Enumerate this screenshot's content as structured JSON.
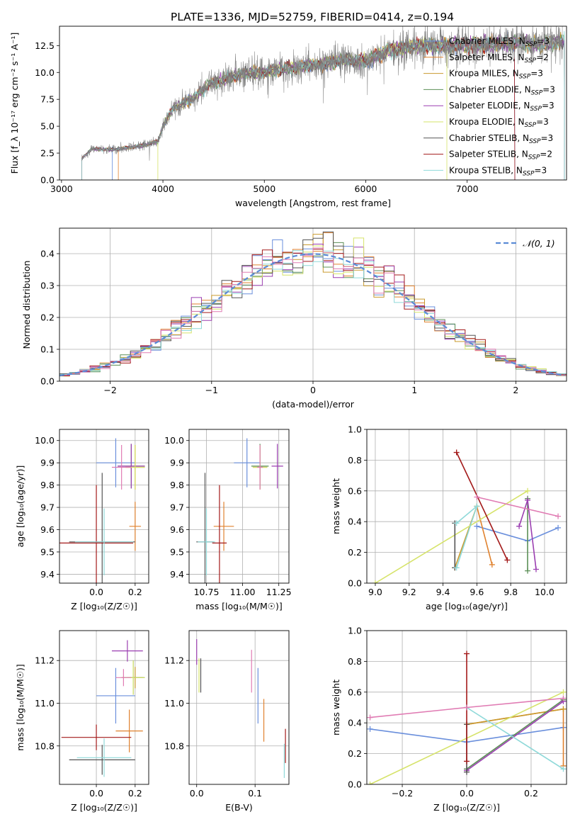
{
  "figure": {
    "title": "PLATE=1336, MJD=52759, FIBERID=0414, z=0.194"
  },
  "colors": {
    "Chabrier MILES": "#6a8fdc",
    "Salpeter MILES": "#e0822f",
    "Kroupa MILES": "#c99a2e",
    "Chabrier ELODIE": "#5c8f57",
    "Salpeter ELODIE": "#9b3fb1",
    "Kroupa ELODIE": "#d6e36a",
    "Chabrier STELIB": "#555555",
    "Salpeter STELIB": "#a31a1a",
    "Kroupa STELIB": "#8fd9d9",
    "pink": "#e07bb3",
    "data": "#808080",
    "normal": "#5b8bd6"
  },
  "chart_data": [
    {
      "id": "spectrum",
      "type": "line",
      "xlabel": "wavelength [Angstrom, rest frame]",
      "ylabel": "Flux [f_λ 10⁻¹⁷ erg cm⁻² s⁻¹ A⁻¹]",
      "xlim": [
        2980,
        7980
      ],
      "ylim": [
        0,
        14.3
      ],
      "xticks": [
        "3000",
        "4000",
        "5000",
        "6000",
        "7000"
      ],
      "xtick_values": [
        3000,
        4000,
        5000,
        6000,
        7000
      ],
      "yticks": [
        "0.0",
        "2.5",
        "5.0",
        "7.5",
        "10.0",
        "12.5"
      ],
      "ytick_values": [
        0,
        2.5,
        5,
        7.5,
        10,
        12.5
      ],
      "legend_location": "upper right",
      "legend": [
        {
          "name": "Chabrier MILES, N",
          "sub": "SSP",
          "suffix": "=3"
        },
        {
          "name": "Salpeter MILES, N",
          "sub": "SSP",
          "suffix": "=2"
        },
        {
          "name": "Kroupa MILES, N",
          "sub": "SSP",
          "suffix": "=3"
        },
        {
          "name": "Chabrier ELODIE, N",
          "sub": "SSP",
          "suffix": "=3"
        },
        {
          "name": "Salpeter ELODIE, N",
          "sub": "SSP",
          "suffix": "=3"
        },
        {
          "name": "Kroupa ELODIE, N",
          "sub": "SSP",
          "suffix": "=3"
        },
        {
          "name": "Chabrier STELIB, N",
          "sub": "SSP",
          "suffix": "=3"
        },
        {
          "name": "Salpeter STELIB, N",
          "sub": "SSP",
          "suffix": "=2"
        },
        {
          "name": "Kroupa STELIB, N",
          "sub": "SSP",
          "suffix": "=3"
        }
      ],
      "data_range": [
        3200,
        7940
      ],
      "data_points": [
        [
          3200,
          2.0
        ],
        [
          3300,
          2.9
        ],
        [
          3500,
          2.8
        ],
        [
          3800,
          3.2
        ],
        [
          3950,
          3.6
        ],
        [
          4000,
          5.0
        ],
        [
          4100,
          6.7
        ],
        [
          4300,
          7.6
        ],
        [
          4450,
          8.9
        ],
        [
          4600,
          9.3
        ],
        [
          4800,
          9.9
        ],
        [
          5000,
          10.0
        ],
        [
          5200,
          10.4
        ],
        [
          5400,
          10.6
        ],
        [
          5600,
          10.8
        ],
        [
          5800,
          11.2
        ],
        [
          6000,
          11.0
        ],
        [
          6200,
          12.0
        ],
        [
          6500,
          12.5
        ],
        [
          6800,
          12.5
        ],
        [
          7200,
          12.6
        ],
        [
          7500,
          12.8
        ],
        [
          7700,
          12.5
        ],
        [
          7940,
          12.9
        ]
      ],
      "model_ranges": [
        [
          3500,
          7470
        ],
        [
          3560,
          7960
        ],
        [
          3200,
          7960
        ],
        [
          3200,
          7960
        ],
        [
          3200,
          7960
        ],
        [
          3950,
          6800
        ],
        [
          3200,
          7960
        ],
        [
          3200,
          7470
        ],
        [
          3200,
          7960
        ]
      ]
    },
    {
      "id": "residuals",
      "type": "step",
      "xlabel": "(data-model)/error",
      "ylabel": "Normed distribution",
      "xlim": [
        -2.5,
        2.5
      ],
      "ylim": [
        0,
        0.48
      ],
      "xticks": [
        "−2",
        "−1",
        "0",
        "1",
        "2"
      ],
      "xtick_values": [
        -2,
        -1,
        0,
        1,
        2
      ],
      "yticks": [
        "0.0",
        "0.1",
        "0.2",
        "0.3",
        "0.4"
      ],
      "ytick_values": [
        0,
        0.1,
        0.2,
        0.3,
        0.4
      ],
      "legend": [
        {
          "name": "𝒩(0, 1)"
        }
      ],
      "legend_location": "upper right",
      "bin_width": 0.1,
      "grid": true
    },
    {
      "id": "age_vs_Z",
      "type": "errorbar",
      "xlabel": "Z [log₁₀(Z/Z☉)]",
      "ylabel": "age  [log₁₀(age/yr)]",
      "xlim": [
        -0.19,
        0.27
      ],
      "ylim": [
        9.36,
        10.05
      ],
      "xticks": [
        "0.0",
        "0.2"
      ],
      "xtick_values": [
        0,
        0.2
      ],
      "yticks": [
        "9.4",
        "9.5",
        "9.6",
        "9.7",
        "9.8",
        "9.9",
        "10.0"
      ],
      "ytick_values": [
        9.4,
        9.5,
        9.6,
        9.7,
        9.8,
        9.9,
        10.0
      ],
      "points": [
        {
          "x": 0.1,
          "xerr": 0.1,
          "y": 9.9,
          "yerr": 0.11,
          "series": "Chabrier MILES"
        },
        {
          "x": 0.2,
          "xerr": 0.03,
          "y": 9.615,
          "yerr": 0.11,
          "series": "Salpeter MILES"
        },
        {
          "x": 0.2,
          "xerr": 0.05,
          "y": 9.88,
          "yerr": 0.1,
          "series": "Kroupa MILES"
        },
        {
          "x": 0.18,
          "xerr": 0.07,
          "y": 9.885,
          "yerr": 0.1,
          "series": "Chabrier ELODIE"
        },
        {
          "x": 0.18,
          "xerr": 0.07,
          "y": 9.885,
          "yerr": 0.1,
          "series": "Salpeter ELODIE"
        },
        {
          "x": 0.2,
          "xerr": 0.05,
          "y": 9.88,
          "yerr": 0.1,
          "series": "Kroupa ELODIE"
        },
        {
          "x": 0.03,
          "xerr": 0.17,
          "y": 9.545,
          "yerr": 0.31,
          "series": "Chabrier STELIB"
        },
        {
          "x": 0.0,
          "xerr": 0.19,
          "y": 9.54,
          "yerr": 0.26,
          "series": "Salpeter STELIB"
        },
        {
          "x": 0.04,
          "xerr": 0.15,
          "y": 9.545,
          "yerr": 0.15,
          "series": "Kroupa STELIB"
        },
        {
          "x": 0.13,
          "xerr": 0.05,
          "y": 9.88,
          "yerr": 0.1,
          "series": "pink"
        }
      ]
    },
    {
      "id": "age_vs_mass",
      "type": "errorbar",
      "xlabel": "mass [log₁₀(M/M☉)]",
      "ylabel": "",
      "xlim": [
        10.63,
        11.32
      ],
      "ylim": [
        9.36,
        10.05
      ],
      "xticks": [
        "10.75",
        "11.00",
        "11.25"
      ],
      "xtick_values": [
        10.75,
        11.0,
        11.25
      ],
      "yticks": [
        "9.4",
        "9.5",
        "9.6",
        "9.7",
        "9.8",
        "9.9",
        "10.0"
      ],
      "ytick_values": [
        9.4,
        9.5,
        9.6,
        9.7,
        9.8,
        9.9,
        10.0
      ],
      "points": [
        {
          "x": 11.03,
          "xerr": 0.09,
          "y": 9.9,
          "yerr": 0.11,
          "series": "Chabrier MILES"
        },
        {
          "x": 10.87,
          "xerr": 0.07,
          "y": 9.615,
          "yerr": 0.11,
          "series": "Salpeter MILES"
        },
        {
          "x": 11.12,
          "xerr": 0.05,
          "y": 9.88,
          "yerr": 0.1,
          "series": "Kroupa MILES"
        },
        {
          "x": 11.12,
          "xerr": 0.06,
          "y": 9.885,
          "yerr": 0.1,
          "series": "Chabrier ELODIE"
        },
        {
          "x": 11.24,
          "xerr": 0.04,
          "y": 9.885,
          "yerr": 0.1,
          "series": "Salpeter ELODIE"
        },
        {
          "x": 11.12,
          "xerr": 0.05,
          "y": 9.88,
          "yerr": 0.1,
          "series": "Kroupa ELODIE"
        },
        {
          "x": 10.74,
          "xerr": 0.06,
          "y": 9.545,
          "yerr": 0.31,
          "series": "Chabrier STELIB"
        },
        {
          "x": 10.84,
          "xerr": 0.05,
          "y": 9.54,
          "yerr": 0.26,
          "series": "Salpeter STELIB"
        },
        {
          "x": 10.75,
          "xerr": 0.06,
          "y": 9.545,
          "yerr": 0.15,
          "series": "Kroupa STELIB"
        },
        {
          "x": 11.12,
          "xerr": 0.02,
          "y": 9.88,
          "yerr": 0.1,
          "series": "pink"
        }
      ]
    },
    {
      "id": "weight_vs_age",
      "type": "line",
      "xlabel": "age  [log₁₀(age/yr)]",
      "ylabel": "mass weight",
      "xlim": [
        8.95,
        10.13
      ],
      "ylim": [
        0,
        1.0
      ],
      "xticks": [
        "9.0",
        "9.2",
        "9.4",
        "9.6",
        "9.8",
        "10.0"
      ],
      "xtick_values": [
        9.0,
        9.2,
        9.4,
        9.6,
        9.8,
        10.0
      ],
      "yticks": [
        "0.0",
        "0.2",
        "0.4",
        "0.6",
        "0.8",
        "1.0"
      ],
      "ytick_values": [
        0,
        0.2,
        0.4,
        0.6,
        0.8,
        1.0
      ],
      "series": [
        {
          "name": "Chabrier MILES",
          "x": [
            9.6,
            9.9,
            10.08
          ],
          "y": [
            0.37,
            0.275,
            0.36
          ]
        },
        {
          "name": "Salpeter MILES",
          "x": [
            9.6,
            9.69
          ],
          "y": [
            0.5,
            0.12
          ]
        },
        {
          "name": "Kroupa MILES",
          "x": [
            9.47,
            9.6
          ],
          "y": [
            0.1,
            0.5
          ]
        },
        {
          "name": "Chabrier ELODIE",
          "x": [
            9.9,
            9.9
          ],
          "y": [
            0.08,
            0.55
          ]
        },
        {
          "name": "Salpeter ELODIE",
          "x": [
            9.85,
            9.9,
            9.95
          ],
          "y": [
            0.37,
            0.54,
            0.09
          ]
        },
        {
          "name": "Kroupa ELODIE",
          "x": [
            9.0,
            9.9
          ],
          "y": [
            0.0,
            0.6
          ]
        },
        {
          "name": "Chabrier STELIB",
          "x": [
            9.47,
            9.47
          ],
          "y": [
            0.1,
            0.39
          ]
        },
        {
          "name": "Salpeter STELIB",
          "x": [
            9.48,
            9.78
          ],
          "y": [
            0.85,
            0.15
          ]
        },
        {
          "name": "Kroupa STELIB",
          "x": [
            9.48,
            9.6,
            9.48
          ],
          "y": [
            0.39,
            0.5,
            0.1
          ]
        },
        {
          "name": "pink",
          "x": [
            9.6,
            10.08
          ],
          "y": [
            0.56,
            0.435
          ]
        }
      ]
    },
    {
      "id": "mass_vs_Z",
      "type": "errorbar",
      "xlabel": "Z [log₁₀(Z/Z☉)]",
      "ylabel": "mass [log₁₀(M/M☉)]",
      "xlim": [
        -0.19,
        0.27
      ],
      "ylim": [
        10.62,
        11.34
      ],
      "xticks": [
        "0.0",
        "0.2"
      ],
      "xtick_values": [
        0,
        0.2
      ],
      "yticks": [
        "10.8",
        "11.0",
        "11.2"
      ],
      "ytick_values": [
        10.8,
        11.0,
        11.2
      ],
      "points": [
        {
          "x": 0.1,
          "xerr": 0.1,
          "y": 11.035,
          "yerr": 0.13,
          "series": "Chabrier MILES"
        },
        {
          "x": 0.17,
          "xerr": 0.07,
          "y": 10.87,
          "yerr": 0.1,
          "series": "Salpeter MILES"
        },
        {
          "x": 0.2,
          "xerr": 0.04,
          "y": 11.12,
          "yerr": 0.05,
          "series": "Kroupa MILES"
        },
        {
          "x": 0.19,
          "xerr": 0.06,
          "y": 11.12,
          "yerr": 0.08,
          "series": "Chabrier ELODIE"
        },
        {
          "x": 0.16,
          "xerr": 0.08,
          "y": 11.245,
          "yerr": 0.05,
          "series": "Salpeter ELODIE"
        },
        {
          "x": 0.19,
          "xerr": 0.06,
          "y": 11.12,
          "yerr": 0.08,
          "series": "Kroupa ELODIE"
        },
        {
          "x": 0.03,
          "xerr": 0.17,
          "y": 10.735,
          "yerr": 0.07,
          "series": "Chabrier STELIB"
        },
        {
          "x": 0.0,
          "xerr": 0.18,
          "y": 10.84,
          "yerr": 0.06,
          "series": "Salpeter STELIB"
        },
        {
          "x": 0.04,
          "xerr": 0.14,
          "y": 10.745,
          "yerr": 0.09,
          "series": "Kroupa STELIB"
        },
        {
          "x": 0.14,
          "xerr": 0.04,
          "y": 11.12,
          "yerr": 0.04,
          "series": "pink"
        }
      ]
    },
    {
      "id": "mass_vs_ebv",
      "type": "errorbar",
      "xlabel": "E(B-V)",
      "ylabel": "",
      "xlim": [
        -0.013,
        0.158
      ],
      "ylim": [
        10.62,
        11.34
      ],
      "xticks": [
        "0.0",
        "0.1"
      ],
      "xtick_values": [
        0,
        0.1
      ],
      "yticks": [
        "10.8",
        "11.0",
        "11.2"
      ],
      "ytick_values": [
        10.8,
        11.0,
        11.2
      ],
      "points": [
        {
          "x": 0.105,
          "xerr": 0,
          "y": 11.035,
          "yerr": 0.13,
          "series": "Chabrier MILES"
        },
        {
          "x": 0.115,
          "xerr": 0,
          "y": 10.92,
          "yerr": 0.1,
          "series": "Salpeter MILES"
        },
        {
          "x": 0.004,
          "xerr": 0,
          "y": 11.13,
          "yerr": 0.08,
          "series": "Kroupa ELODIE"
        },
        {
          "x": 0.0,
          "xerr": 0,
          "y": 11.24,
          "yerr": 0.06,
          "series": "Salpeter ELODIE"
        },
        {
          "x": 0.007,
          "xerr": 0,
          "y": 11.13,
          "yerr": 0.08,
          "series": "Chabrier STELIB"
        },
        {
          "x": 0.152,
          "xerr": 0,
          "y": 10.8,
          "yerr": 0.08,
          "series": "Salpeter STELIB"
        },
        {
          "x": 0.15,
          "xerr": 0,
          "y": 10.73,
          "yerr": 0.08,
          "series": "Kroupa STELIB"
        },
        {
          "x": 0.094,
          "xerr": 0,
          "y": 11.15,
          "yerr": 0.1,
          "series": "pink"
        }
      ]
    },
    {
      "id": "weight_vs_Z",
      "type": "line",
      "xlabel": "Z [log₁₀(Z/Z☉)]",
      "ylabel": "mass weight",
      "xlim": [
        -0.31,
        0.31
      ],
      "ylim": [
        0,
        1.0
      ],
      "xticks": [
        "−0.2",
        "0.0",
        "0.2"
      ],
      "xtick_values": [
        -0.2,
        0.0,
        0.2
      ],
      "yticks": [
        "0.0",
        "0.2",
        "0.4",
        "0.6",
        "0.8",
        "1.0"
      ],
      "ytick_values": [
        0,
        0.2,
        0.4,
        0.6,
        0.8,
        1.0
      ],
      "series": [
        {
          "name": "Chabrier MILES",
          "x": [
            -0.3,
            0.0,
            0.3
          ],
          "y": [
            0.36,
            0.275,
            0.37
          ]
        },
        {
          "name": "Salpeter MILES",
          "x": [
            0.0,
            0.3,
            0.3
          ],
          "y": [
            0.39,
            0.49,
            0.12
          ]
        },
        {
          "name": "Kroupa MILES",
          "x": [
            0.0,
            0.3
          ],
          "y": [
            0.39,
            0.49
          ]
        },
        {
          "name": "Chabrier ELODIE",
          "x": [
            0.0,
            0.3
          ],
          "y": [
            0.1,
            0.55
          ]
        },
        {
          "name": "Salpeter ELODIE",
          "x": [
            0.0,
            0.3
          ],
          "y": [
            0.09,
            0.54
          ]
        },
        {
          "name": "Kroupa ELODIE",
          "x": [
            -0.3,
            0.3
          ],
          "y": [
            0.0,
            0.6
          ]
        },
        {
          "name": "Chabrier STELIB",
          "x": [
            0.0,
            0.0
          ],
          "y": [
            0.08,
            0.39
          ]
        },
        {
          "name": "Salpeter STELIB",
          "x": [
            0.0,
            0.0
          ],
          "y": [
            0.15,
            0.85
          ]
        },
        {
          "name": "Kroupa STELIB",
          "x": [
            0.0,
            0.3
          ],
          "y": [
            0.5,
            0.1
          ]
        },
        {
          "name": "pink",
          "x": [
            -0.3,
            0.0,
            0.3
          ],
          "y": [
            0.435,
            0.5,
            0.56
          ]
        }
      ]
    }
  ]
}
